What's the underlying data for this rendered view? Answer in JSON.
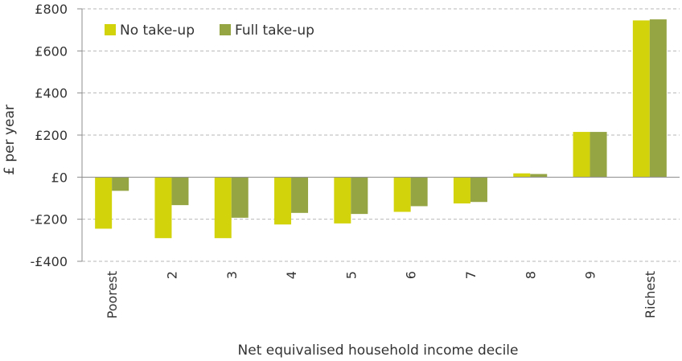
{
  "chart_data": {
    "type": "bar",
    "title": "",
    "xlabel": "Net equivalised household income decile",
    "ylabel": "£ per year",
    "ylim": [
      -400,
      800
    ],
    "yticks": [
      -400,
      -200,
      0,
      200,
      400,
      600,
      800
    ],
    "ytick_labels": [
      "-£400",
      "-£200",
      "£0",
      "£200",
      "£400",
      "£600",
      "£800"
    ],
    "categories": [
      "Poorest",
      "2",
      "3",
      "4",
      "5",
      "6",
      "7",
      "8",
      "9",
      "Richest"
    ],
    "series": [
      {
        "name": "No take-up",
        "color": "#d2d30a",
        "values": [
          -245,
          -290,
          -290,
          -225,
          -220,
          -165,
          -125,
          18,
          215,
          745
        ]
      },
      {
        "name": "Full take-up",
        "color": "#95a544",
        "values": [
          -65,
          -133,
          -193,
          -170,
          -175,
          -138,
          -118,
          15,
          215,
          750
        ]
      }
    ],
    "grid": true,
    "legend_position": "top-left"
  }
}
